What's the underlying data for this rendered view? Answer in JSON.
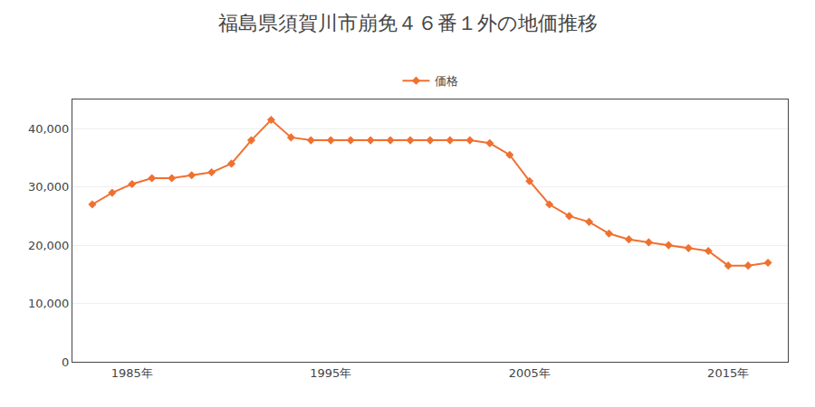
{
  "chart_data": {
    "type": "line",
    "title": "福島県須賀川市崩免４６番１外の地価推移",
    "x": [
      1983,
      1984,
      1985,
      1986,
      1987,
      1988,
      1989,
      1990,
      1991,
      1992,
      1993,
      1994,
      1995,
      1996,
      1997,
      1998,
      1999,
      2000,
      2001,
      2002,
      2003,
      2004,
      2005,
      2006,
      2007,
      2008,
      2009,
      2010,
      2011,
      2012,
      2013,
      2014,
      2015,
      2016,
      2017
    ],
    "series": [
      {
        "name": "価格",
        "color": "#f07030",
        "marker": "diamond",
        "line_style": "solid",
        "values": [
          27000,
          29000,
          30500,
          31500,
          31500,
          32000,
          32500,
          34000,
          38000,
          41500,
          38500,
          38000,
          38000,
          38000,
          38000,
          38000,
          38000,
          38000,
          38000,
          38000,
          37500,
          35500,
          31000,
          27000,
          25000,
          24000,
          22000,
          21000,
          20500,
          20000,
          19500,
          19000,
          16500,
          16500,
          17000
        ]
      }
    ],
    "xlim": [
      1982,
      2018
    ],
    "xticks": [
      {
        "value": 1985,
        "label": "1985年"
      },
      {
        "value": 1995,
        "label": "1995年"
      },
      {
        "value": 2005,
        "label": "2005年"
      },
      {
        "value": 2015,
        "label": "2015年"
      }
    ],
    "ylim": [
      0,
      45000
    ],
    "yticks": [
      0,
      {
        "value": 10000,
        "label": "10,000"
      },
      {
        "value": 20000,
        "label": "20,000"
      },
      {
        "value": 30000,
        "label": "30,000"
      },
      {
        "value": 40000,
        "label": "40,000"
      }
    ],
    "grid": "y",
    "legend": "top"
  }
}
